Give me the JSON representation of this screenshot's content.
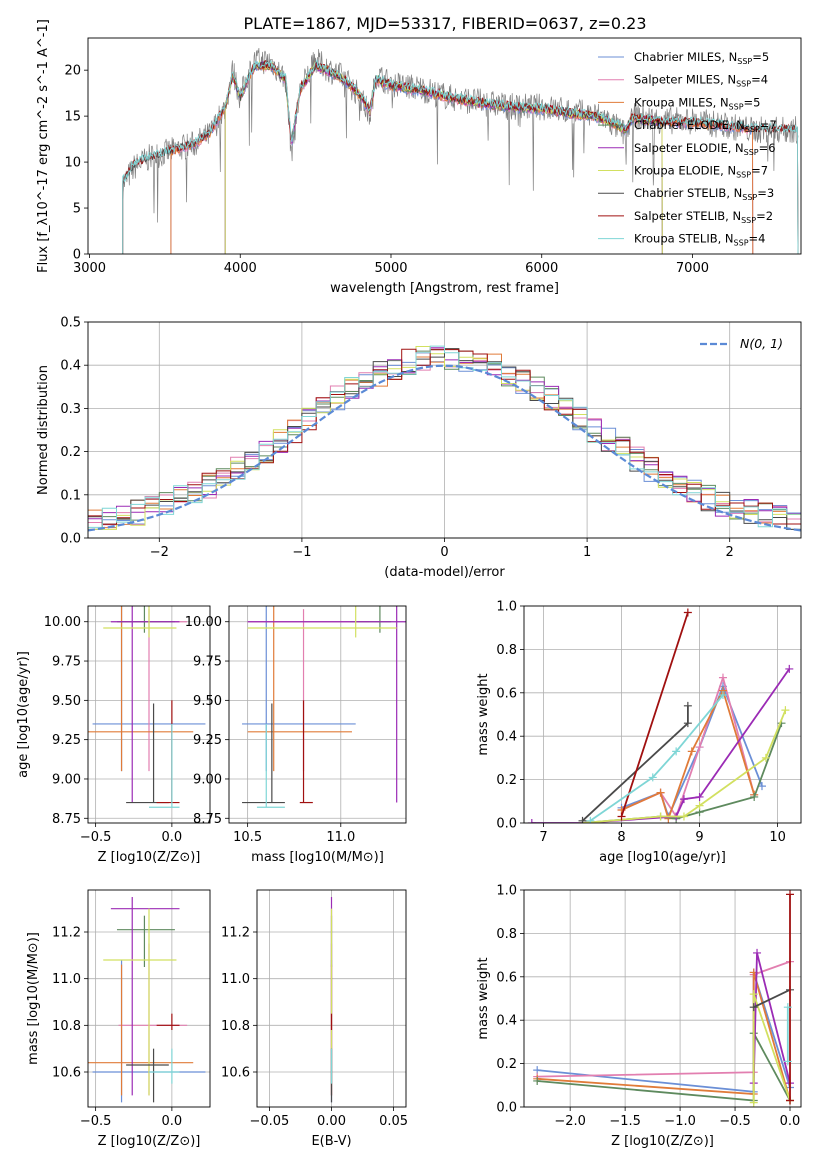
{
  "title": "PLATE=1867, MJD=53317, FIBERID=0637, z=0.23",
  "colors": {
    "Chabrier MILES": "#6b8fd6",
    "Salpeter MILES": "#e27fb0",
    "Kroupa MILES": "#e07b39",
    "Chabrier ELODIE": "#5e8a5e",
    "Salpeter ELODIE": "#9b2bb5",
    "Kroupa ELODIE": "#d2e060",
    "Chabrier STELIB": "#4a4a4a",
    "Salpeter STELIB": "#a01010",
    "Kroupa STELIB": "#7fd6d6"
  },
  "chart_data": [
    {
      "id": "spectrum",
      "type": "line",
      "title": "PLATE=1867, MJD=53317, FIBERID=0637, z=0.23",
      "xlabel": "wavelength [Angstrom, rest frame]",
      "ylabel": "Flux [f_λ10^-17 erg cm^-2 s^-1 A^-1]",
      "xlim": [
        2990,
        7720
      ],
      "ylim": [
        0,
        23.5
      ],
      "xticks": [
        3000,
        4000,
        5000,
        6000,
        7000
      ],
      "yticks": [
        0,
        5,
        10,
        15,
        20
      ],
      "grid": false,
      "legend_position": "top-right",
      "legend": [
        {
          "name": "Chabrier MILES",
          "nssp": "5"
        },
        {
          "name": "Salpeter MILES",
          "nssp": "4"
        },
        {
          "name": "Kroupa MILES",
          "nssp": "5"
        },
        {
          "name": "Chabrier ELODIE",
          "nssp": "7"
        },
        {
          "name": "Salpeter ELODIE",
          "nssp": "6"
        },
        {
          "name": "Kroupa ELODIE",
          "nssp": "7"
        },
        {
          "name": "Chabrier STELIB",
          "nssp": "3"
        },
        {
          "name": "Salpeter STELIB",
          "nssp": "2"
        },
        {
          "name": "Kroupa STELIB",
          "nssp": "4"
        }
      ],
      "data_series": {
        "name": "data",
        "x": [
          3220,
          3300,
          3400,
          3500,
          3600,
          3700,
          3800,
          3900,
          3950,
          4000,
          4050,
          4100,
          4200,
          4300,
          4340,
          4400,
          4500,
          4600,
          4700,
          4800,
          4860,
          4900,
          5000,
          5200,
          5400,
          5600,
          5800,
          6000,
          6200,
          6400,
          6560,
          6600,
          6800,
          7000,
          7200,
          7400,
          7700
        ],
        "y": [
          7.5,
          9.5,
          10.5,
          11,
          11.5,
          12,
          13,
          16,
          20,
          17,
          19.5,
          21,
          21,
          19,
          11,
          18,
          21,
          20,
          19,
          17,
          15,
          19.5,
          18.5,
          18,
          17,
          16.5,
          16,
          16,
          15.5,
          15,
          13,
          15,
          14.5,
          14.5,
          14,
          13.5,
          13.5
        ]
      },
      "model_series": {
        "name": "models",
        "x": [
          3220,
          3300,
          3400,
          3500,
          3600,
          3700,
          3800,
          3900,
          3950,
          4000,
          4050,
          4100,
          4200,
          4300,
          4340,
          4400,
          4500,
          4600,
          4700,
          4800,
          4860,
          4900,
          5000,
          5200,
          5400,
          5600,
          5800,
          6000,
          6200,
          6400,
          6560,
          6600,
          6800,
          7000,
          7200,
          7400,
          7700
        ],
        "y": [
          7.8,
          9.8,
          10.5,
          11,
          11.5,
          12,
          13.2,
          16,
          19.5,
          17,
          19,
          20.5,
          20.5,
          19,
          12,
          18,
          20.5,
          19.8,
          18.8,
          17.2,
          15.5,
          19,
          18.3,
          17.8,
          17,
          16.4,
          16,
          15.8,
          15.3,
          14.8,
          13.5,
          14.8,
          14.4,
          14.3,
          14,
          13.6,
          13.5
        ]
      }
    },
    {
      "id": "residuals",
      "type": "line",
      "xlabel": "(data-model)/error",
      "ylabel": "Normed distribution",
      "xlim": [
        -2.5,
        2.5
      ],
      "ylim": [
        0,
        0.5
      ],
      "xticks": [
        -2,
        -1,
        0,
        1,
        2
      ],
      "yticks": [
        0.0,
        0.1,
        0.2,
        0.3,
        0.4,
        0.5
      ],
      "grid": true,
      "legend_position": "top-right",
      "legend": [
        {
          "name": "N(0, 1)"
        }
      ],
      "bins": [
        -2.5,
        -2.4,
        -2.3,
        -2.2,
        -2.1,
        -2.0,
        -1.9,
        -1.8,
        -1.7,
        -1.6,
        -1.5,
        -1.4,
        -1.3,
        -1.2,
        -1.1,
        -1.0,
        -0.9,
        -0.8,
        -0.7,
        -0.6,
        -0.5,
        -0.4,
        -0.3,
        -0.2,
        -0.1,
        0.0,
        0.1,
        0.2,
        0.3,
        0.4,
        0.5,
        0.6,
        0.7,
        0.8,
        0.9,
        1.0,
        1.1,
        1.2,
        1.3,
        1.4,
        1.5,
        1.6,
        1.7,
        1.8,
        1.9,
        2.0,
        2.1,
        2.2,
        2.3,
        2.4,
        2.5
      ]
    },
    {
      "id": "age-vs-Z",
      "type": "scatter",
      "xlabel": "Z [log10(Z/Z⊙)]",
      "ylabel": "age [log10(age/yr)]",
      "xlim": [
        -0.55,
        0.25
      ],
      "ylim": [
        8.72,
        10.1
      ],
      "xticks": [
        -0.5,
        0.0
      ],
      "yticks": [
        8.75,
        9.0,
        9.25,
        9.5,
        9.75,
        10.0
      ],
      "grid": true
    },
    {
      "id": "age-vs-mass",
      "type": "scatter",
      "xlabel": "mass [log10(M/M⊙)]",
      "xlim": [
        10.4,
        11.35
      ],
      "ylim": [
        8.72,
        10.1
      ],
      "xticks": [
        10.5,
        11.0
      ],
      "yticks": [
        8.75,
        9.0,
        9.25,
        9.5,
        9.75,
        10.0
      ],
      "grid": true
    },
    {
      "id": "massweight-vs-age",
      "type": "line",
      "xlabel": "age [log10(age/yr)]",
      "ylabel": "mass weight",
      "xlim": [
        6.75,
        10.3
      ],
      "ylim": [
        0,
        1.0
      ],
      "xticks": [
        7,
        8,
        9,
        10
      ],
      "yticks": [
        0.0,
        0.2,
        0.4,
        0.6,
        0.8,
        1.0
      ],
      "grid": true,
      "series": [
        {
          "name": "Chabrier MILES",
          "x": [
            8.0,
            8.5,
            8.6,
            9.0,
            9.3,
            9.8
          ],
          "y": [
            0.07,
            0.14,
            0.03,
            0.35,
            0.63,
            0.17
          ]
        },
        {
          "name": "Salpeter MILES",
          "x": [
            8.0,
            8.5,
            8.7,
            9.0,
            9.3,
            9.7
          ],
          "y": [
            0.06,
            0.14,
            0.03,
            0.35,
            0.67,
            0.13
          ]
        },
        {
          "name": "Kroupa MILES",
          "x": [
            8.0,
            8.5,
            8.6,
            8.9,
            9.3,
            9.7
          ],
          "y": [
            0.06,
            0.14,
            0.02,
            0.33,
            0.61,
            0.13
          ]
        },
        {
          "name": "Chabrier ELODIE",
          "x": [
            7.5,
            8.5,
            8.7,
            9.0,
            9.7,
            10.05
          ],
          "y": [
            0.0,
            0.03,
            0.02,
            0.05,
            0.12,
            0.46
          ]
        },
        {
          "name": "Salpeter ELODIE",
          "x": [
            6.85,
            7.5,
            8.7,
            8.8,
            9.0,
            10.15
          ],
          "y": [
            0.0,
            0.0,
            0.03,
            0.11,
            0.12,
            0.71
          ]
        },
        {
          "name": "Kroupa ELODIE",
          "x": [
            7.5,
            8.5,
            8.8,
            9.0,
            9.85,
            10.1
          ],
          "y": [
            0.0,
            0.03,
            0.03,
            0.08,
            0.3,
            0.52
          ]
        },
        {
          "name": "Chabrier STELIB",
          "x": [
            7.5,
            8.85,
            8.85
          ],
          "y": [
            0.01,
            0.46,
            0.54
          ]
        },
        {
          "name": "Salpeter STELIB",
          "x": [
            8.0,
            8.85
          ],
          "y": [
            0.03,
            0.97
          ]
        },
        {
          "name": "Kroupa STELIB",
          "x": [
            7.6,
            8.4,
            8.7,
            9.3
          ],
          "y": [
            0.01,
            0.21,
            0.33,
            0.59
          ]
        }
      ]
    },
    {
      "id": "mass-vs-Z",
      "type": "scatter",
      "xlabel": "Z [log10(Z/Z⊙)]",
      "ylabel": "mass [log10(M/M⊙)]",
      "xlim": [
        -0.55,
        0.25
      ],
      "ylim": [
        10.45,
        11.38
      ],
      "xticks": [
        -0.5,
        0.0
      ],
      "yticks": [
        10.6,
        10.8,
        11.0,
        11.2
      ],
      "grid": true
    },
    {
      "id": "mass-vs-ebv",
      "type": "scatter",
      "xlabel": "E(B-V)",
      "xlim": [
        -0.06,
        0.06
      ],
      "ylim": [
        10.45,
        11.38
      ],
      "xticks": [
        -0.05,
        0.0,
        0.05
      ],
      "yticks": [
        10.6,
        10.8,
        11.0,
        11.2
      ],
      "grid": true
    },
    {
      "id": "massweight-vs-Z",
      "type": "line",
      "xlabel": "Z [log10(Z/Z⊙)]",
      "ylabel": "mass weight",
      "xlim": [
        -2.42,
        0.1
      ],
      "ylim": [
        0,
        1.0
      ],
      "xticks": [
        -2.0,
        -1.5,
        -1.0,
        -0.5,
        0.0
      ],
      "yticks": [
        0.0,
        0.2,
        0.4,
        0.6,
        0.8,
        1.0
      ],
      "grid": true,
      "series": [
        {
          "name": "Chabrier MILES",
          "x": [
            -2.3,
            -0.33,
            -0.33,
            0.0
          ],
          "y": [
            0.17,
            0.07,
            0.62,
            0.09
          ]
        },
        {
          "name": "Salpeter MILES",
          "x": [
            -2.3,
            -0.33,
            -0.33,
            0.0
          ],
          "y": [
            0.14,
            0.16,
            0.61,
            0.67
          ]
        },
        {
          "name": "Kroupa MILES",
          "x": [
            -2.3,
            -0.33,
            -0.33,
            0.0
          ],
          "y": [
            0.13,
            0.06,
            0.62,
            0.03
          ]
        },
        {
          "name": "Chabrier ELODIE",
          "x": [
            -2.3,
            -0.33,
            -0.33,
            0.0
          ],
          "y": [
            0.12,
            0.03,
            0.34,
            0.03
          ]
        },
        {
          "name": "Salpeter ELODIE",
          "x": [
            -0.33,
            -0.3,
            0.0
          ],
          "y": [
            0.11,
            0.71,
            0.11
          ]
        },
        {
          "name": "Kroupa ELODIE",
          "x": [
            -0.33,
            -0.33,
            0.0
          ],
          "y": [
            0.02,
            0.52,
            0.03
          ]
        },
        {
          "name": "Chabrier STELIB",
          "x": [
            -0.33,
            -0.0
          ],
          "y": [
            0.46,
            0.54
          ]
        },
        {
          "name": "Salpeter STELIB",
          "x": [
            0.0,
            0.0
          ],
          "y": [
            0.03,
            0.98
          ]
        },
        {
          "name": "Kroupa STELIB",
          "x": [
            -0.02,
            -0.02
          ],
          "y": [
            0.21,
            0.46
          ]
        }
      ]
    }
  ],
  "solutions": [
    {
      "name": "Chabrier MILES",
      "age": 9.35,
      "age_lo": 9.05,
      "age_hi": 10.1,
      "Z": -0.33,
      "Z_lo": -0.52,
      "Z_hi": 0.22,
      "mass": 10.6,
      "mass_lo": 10.47,
      "mass_hi": 11.08,
      "ebv": 0.0
    },
    {
      "name": "Salpeter MILES",
      "age": 10.0,
      "age_lo": 9.05,
      "age_hi": 10.08,
      "Z": -0.15,
      "Z_lo": -0.35,
      "Z_hi": 0.1,
      "mass": 10.8,
      "mass_lo": 10.5,
      "mass_hi": 11.15,
      "ebv": 0.0
    },
    {
      "name": "Kroupa MILES",
      "age": 9.3,
      "age_lo": 9.05,
      "age_hi": 10.1,
      "Z": -0.33,
      "Z_lo": -0.55,
      "Z_hi": 0.14,
      "mass": 10.64,
      "mass_lo": 10.5,
      "mass_hi": 11.06,
      "ebv": 0.0
    },
    {
      "name": "Chabrier ELODIE",
      "age": 10.0,
      "age_lo": 9.93,
      "age_hi": 10.12,
      "Z": -0.18,
      "Z_lo": -0.36,
      "Z_hi": 0.02,
      "mass": 11.21,
      "mass_lo": 11.05,
      "mass_hi": 11.27,
      "ebv": 0.0
    },
    {
      "name": "Salpeter ELODIE",
      "age": 10.0,
      "age_lo": 8.85,
      "age_hi": 10.1,
      "Z": -0.26,
      "Z_lo": -0.4,
      "Z_hi": 0.05,
      "mass": 11.3,
      "mass_lo": 10.5,
      "mass_hi": 11.35,
      "ebv": 0.0
    },
    {
      "name": "Kroupa ELODIE",
      "age": 9.96,
      "age_lo": 9.9,
      "age_hi": 10.1,
      "Z": -0.15,
      "Z_lo": -0.45,
      "Z_hi": 0.03,
      "mass": 11.08,
      "mass_lo": 10.5,
      "mass_hi": 11.3,
      "ebv": 0.0
    },
    {
      "name": "Chabrier STELIB",
      "age": 8.85,
      "age_lo": 8.85,
      "age_hi": 9.48,
      "Z": -0.12,
      "Z_lo": -0.3,
      "Z_hi": -0.02,
      "mass": 10.63,
      "mass_lo": 10.47,
      "mass_hi": 10.7,
      "ebv": 0.0
    },
    {
      "name": "Salpeter STELIB",
      "age": 8.85,
      "age_lo": 8.85,
      "age_hi": 9.5,
      "Z": 0.0,
      "Z_lo": -0.1,
      "Z_hi": 0.05,
      "mass": 10.8,
      "mass_lo": 10.78,
      "mass_hi": 10.85,
      "ebv": 0.0
    },
    {
      "name": "Kroupa STELIB",
      "age": 8.82,
      "age_lo": 8.82,
      "age_hi": 9.35,
      "Z": 0.0,
      "Z_lo": -0.15,
      "Z_hi": 0.05,
      "mass": 10.6,
      "mass_lo": 10.55,
      "mass_hi": 10.7,
      "ebv": 0.0
    }
  ],
  "labels": {
    "residual_xlabel": "(data-model)/error",
    "residual_ylabel": "Normed distribution",
    "normal_legend": "N(0, 1)"
  }
}
